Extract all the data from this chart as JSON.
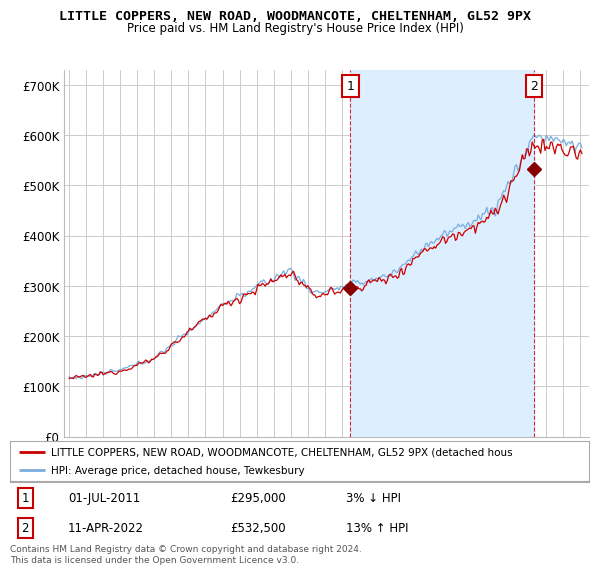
{
  "title": "LITTLE COPPERS, NEW ROAD, WOODMANCOTE, CHELTENHAM, GL52 9PX",
  "subtitle": "Price paid vs. HM Land Registry's House Price Index (HPI)",
  "ylabel_ticks": [
    "£0",
    "£100K",
    "£200K",
    "£300K",
    "£400K",
    "£500K",
    "£600K",
    "£700K"
  ],
  "ytick_values": [
    0,
    100000,
    200000,
    300000,
    400000,
    500000,
    600000,
    700000
  ],
  "ylim": [
    0,
    730000
  ],
  "xlim_start": 1994.7,
  "xlim_end": 2025.5,
  "marker1_x": 2011.5,
  "marker1_y": 295000,
  "marker2_x": 2022.27,
  "marker2_y": 532500,
  "legend_line1": "LITTLE COPPERS, NEW ROAD, WOODMANCOTE, CHELTENHAM, GL52 9PX (detached hous",
  "legend_line2": "HPI: Average price, detached house, Tewkesbury",
  "table_row1": [
    "1",
    "01-JUL-2011",
    "£295,000",
    "3% ↓ HPI"
  ],
  "table_row2": [
    "2",
    "11-APR-2022",
    "£532,500",
    "13% ↑ HPI"
  ],
  "footer": "Contains HM Land Registry data © Crown copyright and database right 2024.\nThis data is licensed under the Open Government Licence v3.0.",
  "line_color_red": "#cc0000",
  "line_color_blue": "#7aaddd",
  "shade_color": "#ddeeff",
  "background_color": "#ffffff",
  "grid_color": "#cccccc",
  "title_fontsize": 9.5,
  "subtitle_fontsize": 8.5,
  "axis_fontsize": 8.5
}
